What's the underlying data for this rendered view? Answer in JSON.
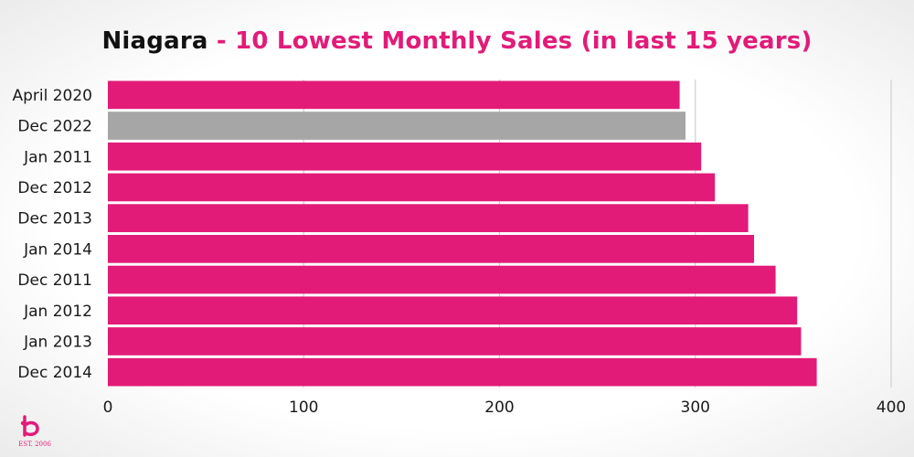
{
  "title": {
    "main": "Niagara",
    "sub": "- 10 Lowest Monthly Sales (in last 15 years)"
  },
  "logo": {
    "text": "EST. 2006"
  },
  "colors": {
    "bar": "#e21b78",
    "highlight": "#a6a6a6",
    "grid": "#d0d0d0"
  },
  "chart_data": {
    "type": "bar",
    "orientation": "horizontal",
    "title": "Niagara - 10 Lowest Monthly Sales (in last 15 years)",
    "categories": [
      "April 2020",
      "Dec 2022",
      "Jan 2011",
      "Dec 2012",
      "Dec 2013",
      "Jan 2014",
      "Dec 2011",
      "Jan 2012",
      "Jan 2013",
      "Dec 2014"
    ],
    "values": [
      292,
      295,
      303,
      310,
      327,
      330,
      341,
      352,
      354,
      362
    ],
    "highlight_index": 1,
    "xlim": [
      0,
      400
    ],
    "xticks": [
      "0",
      "100",
      "200",
      "300",
      "400"
    ],
    "grid": true,
    "legend": "none"
  }
}
